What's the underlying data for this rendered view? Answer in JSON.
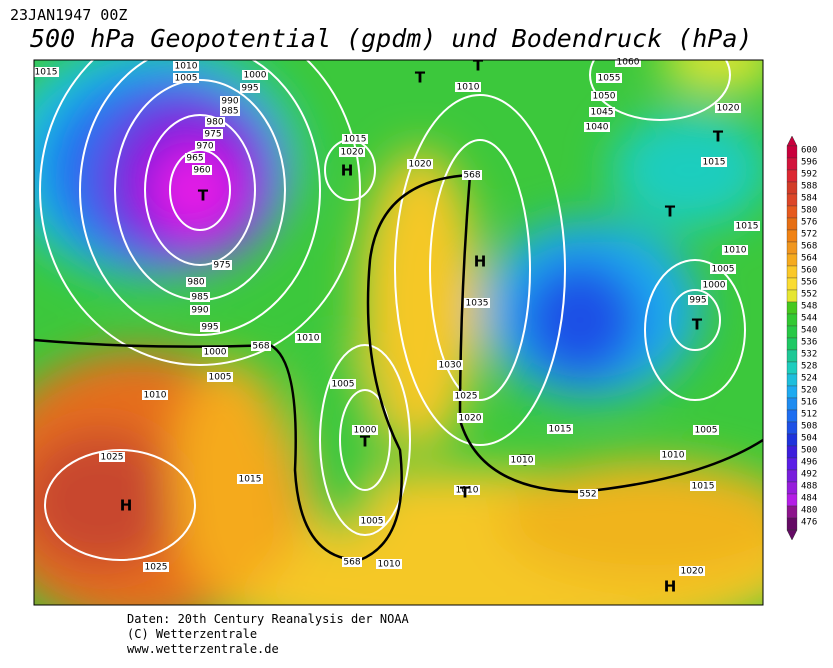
{
  "header": {
    "date": "23JAN1947 00Z",
    "title": "500 hPa Geopotential (gpdm) und Bodendruck (hPa)"
  },
  "map": {
    "labels": [
      "1015",
      "1010",
      "1005",
      "1000",
      "995",
      "990",
      "985",
      "980",
      "975",
      "970",
      "965",
      "960",
      "T",
      "975",
      "980",
      "985",
      "990",
      "995",
      "1000",
      "568",
      "1005",
      "1010",
      "1025",
      "H",
      "1025",
      "1015",
      "1010",
      "1005",
      "1000",
      "T",
      "1005",
      "568",
      "1010",
      "1015",
      "1020",
      "H",
      "1020",
      "T",
      "1010",
      "T",
      "568",
      "H",
      "1035",
      "1030",
      "1025",
      "1020",
      "1015",
      "T",
      "1010",
      "1010",
      "T",
      "552",
      "1015",
      "1010",
      "1005",
      "T",
      "995",
      "1000",
      "1005",
      "1010",
      "1015",
      "T",
      "1015",
      "T",
      "1020",
      "1060",
      "1055",
      "1050",
      "1045",
      "1040",
      "H",
      "1020"
    ]
  },
  "colorbar": {
    "labels": [
      "600",
      "596",
      "592",
      "588",
      "584",
      "580",
      "576",
      "572",
      "568",
      "564",
      "560",
      "556",
      "552",
      "548",
      "544",
      "540",
      "536",
      "532",
      "528",
      "524",
      "520",
      "516",
      "512",
      "508",
      "504",
      "500",
      "496",
      "492",
      "488",
      "484",
      "480",
      "476"
    ],
    "colors": [
      "#c8003c",
      "#d2143c",
      "#dc2832",
      "#d23c28",
      "#dc4628",
      "#e65a1e",
      "#e66e14",
      "#f08214",
      "#f0961e",
      "#f5aa1e",
      "#fac828",
      "#fadc32",
      "#e6e632",
      "#46c81e",
      "#32c832",
      "#28c846",
      "#1ec864",
      "#1ec896",
      "#1ecdbe",
      "#1ebedc",
      "#1eaaf0",
      "#1e8cf0",
      "#1e6ef0",
      "#1e50e6",
      "#1e32dc",
      "#3c1edc",
      "#5a1ee6",
      "#781edc",
      "#961edc",
      "#b41ee6",
      "#8c148c",
      "#640a64"
    ]
  },
  "footer": {
    "lines": [
      "Daten: 20th Century Reanalysis der NOAA",
      "(C) Wetterzentrale",
      "www.wetterzentrale.de"
    ]
  }
}
